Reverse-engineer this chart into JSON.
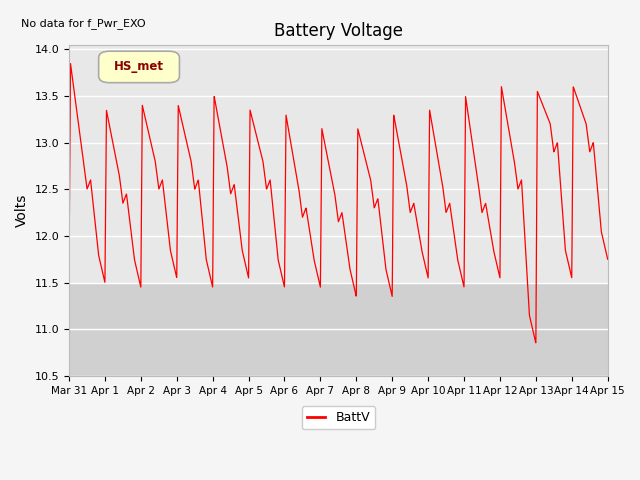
{
  "title": "Battery Voltage",
  "ylabel": "Volts",
  "no_data_text": "No data for f_Pwr_EXO",
  "legend_label": "BattV",
  "line_color": "#ff0000",
  "plot_bg_color": "#e8e8e8",
  "fig_bg_color": "#f5f5f5",
  "shaded_band_low": 10.5,
  "shaded_band_high": 11.5,
  "shaded_color": "#d0d0d0",
  "ylim": [
    10.5,
    14.05
  ],
  "yticks": [
    10.5,
    11.0,
    11.5,
    12.0,
    12.5,
    13.0,
    13.5,
    14.0
  ],
  "x_labels": [
    "Mar 31",
    "Apr 1",
    "Apr 2",
    "Apr 3",
    "Apr 4",
    "Apr 5",
    "Apr 6",
    "Apr 7",
    "Apr 8",
    "Apr 9",
    "Apr 10",
    "Apr 11",
    "Apr 12",
    "Apr 13",
    "Apr 14",
    "Apr 15"
  ],
  "hs_met_label": "HS_met",
  "hs_met_bg": "#ffffcc",
  "hs_met_border": "#aaaaaa",
  "day_peaks": [
    13.85,
    13.35,
    13.4,
    13.4,
    13.5,
    13.35,
    13.3,
    13.15,
    13.15,
    13.3,
    13.35,
    13.5,
    13.6,
    13.55,
    13.6,
    12.85
  ],
  "day_lows": [
    11.65,
    11.5,
    11.45,
    11.55,
    11.45,
    11.55,
    11.45,
    11.45,
    11.35,
    11.35,
    11.55,
    11.45,
    11.55,
    10.85,
    11.55,
    11.75
  ],
  "day_mid_peaks": [
    12.5,
    12.35,
    12.5,
    12.5,
    12.45,
    12.5,
    12.2,
    12.15,
    12.3,
    12.25,
    12.25,
    12.25,
    12.5,
    12.9,
    12.9,
    12.85
  ]
}
